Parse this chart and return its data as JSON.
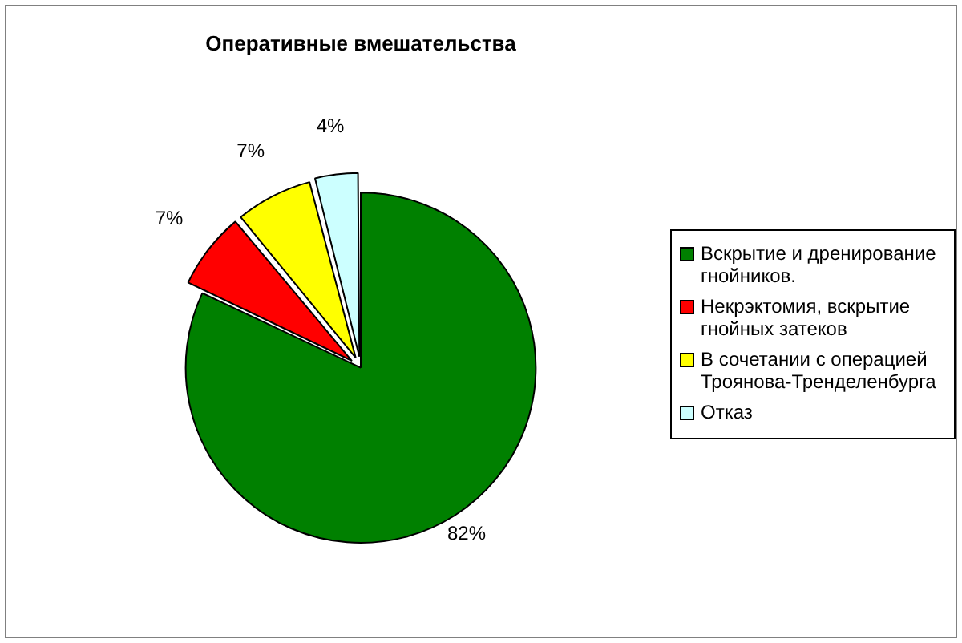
{
  "chart_data": {
    "type": "pie",
    "title": "Оперативные вмешательства",
    "categories": [
      "Вскрытие и дренирование гнойников.",
      "Некрэктомия, вскрытие гнойных затеков",
      "В сочетании с операцией Троянова-Тренделенбурга",
      "Отказ"
    ],
    "values": [
      82,
      7,
      7,
      4
    ],
    "value_labels": [
      "82%",
      "7%",
      "7%",
      "4%"
    ],
    "colors": [
      "#008000",
      "#ff0000",
      "#ffff00",
      "#ccffff"
    ],
    "legend": "right"
  }
}
